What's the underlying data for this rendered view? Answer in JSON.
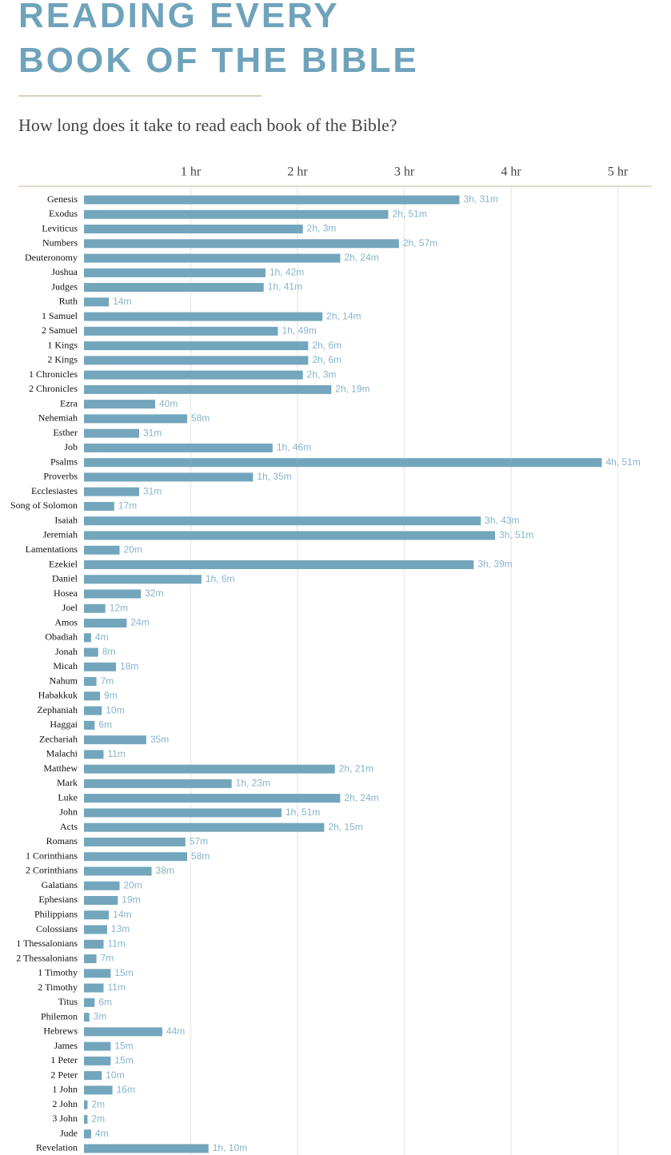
{
  "title_lines": [
    "READING EVERY",
    "BOOK OF THE BIBLE"
  ],
  "chart_data": {
    "type": "hbar",
    "subtitle": "How long does it take to read each book of the Bible?",
    "color": "#73a6bc",
    "xlim": [
      0,
      320
    ],
    "xticks": [
      {
        "value": 60,
        "label": "1 hr"
      },
      {
        "value": 120,
        "label": "2 hr"
      },
      {
        "value": 180,
        "label": "3 hr"
      },
      {
        "value": 240,
        "label": "4 hr"
      },
      {
        "value": 300,
        "label": "5 hr"
      }
    ],
    "grid": true,
    "categories": [
      "Genesis",
      "Exodus",
      "Leviticus",
      "Numbers",
      "Deuteronomy",
      "Joshua",
      "Judges",
      "Ruth",
      "1 Samuel",
      "2 Samuel",
      "1 Kings",
      "2 Kings",
      "1 Chronicles",
      "2 Chronicles",
      "Ezra",
      "Nehemiah",
      "Esther",
      "Job",
      "Psalms",
      "Proverbs",
      "Ecclesiastes",
      "Song of Solomon",
      "Isaiah",
      "Jeremiah",
      "Lamentations",
      "Ezekiel",
      "Daniel",
      "Hosea",
      "Joel",
      "Amos",
      "Obadiah",
      "Jonah",
      "Micah",
      "Nahum",
      "Habakkuk",
      "Zephaniah",
      "Haggai",
      "Zechariah",
      "Malachi",
      "Matthew",
      "Mark",
      "Luke",
      "John",
      "Acts",
      "Romans",
      "1 Corinthians",
      "2 Corinthians",
      "Galatians",
      "Ephesians",
      "Philippians",
      "Colossians",
      "1 Thessalonians",
      "2 Thessalonians",
      "1 Timothy",
      "2 Timothy",
      "Titus",
      "Philemon",
      "Hebrews",
      "James",
      "1 Peter",
      "2 Peter",
      "1 John",
      "2 John",
      "3 John",
      "Jude",
      "Revelation"
    ],
    "values": [
      211,
      171,
      123,
      177,
      144,
      102,
      101,
      14,
      134,
      109,
      126,
      126,
      123,
      139,
      40,
      58,
      31,
      106,
      291,
      95,
      31,
      17,
      223,
      231,
      20,
      219,
      66,
      32,
      12,
      24,
      4,
      8,
      18,
      7,
      9,
      10,
      6,
      35,
      11,
      141,
      83,
      144,
      111,
      135,
      57,
      58,
      38,
      20,
      19,
      14,
      13,
      11,
      7,
      15,
      11,
      6,
      3,
      44,
      15,
      15,
      10,
      16,
      2,
      2,
      4,
      70
    ],
    "value_labels": [
      "3h, 31m",
      "2h, 51m",
      "2h, 3m",
      "2h, 57m",
      "2h, 24m",
      "1h, 42m",
      "1h, 41m",
      "14m",
      "2h, 14m",
      "1h, 49m",
      "2h, 6m",
      "2h, 6m",
      "2h, 3m",
      "2h, 19m",
      "40m",
      "58m",
      "31m",
      "1h, 46m",
      "4h, 51m",
      "1h, 35m",
      "31m",
      "17m",
      "3h, 43m",
      "3h, 51m",
      "20m",
      "3h, 39m",
      "1h, 6m",
      "32m",
      "12m",
      "24m",
      "4m",
      "8m",
      "18m",
      "7m",
      "9m",
      "10m",
      "6m",
      "35m",
      "11m",
      "2h, 21m",
      "1h, 23m",
      "2h, 24m",
      "1h, 51m",
      "2h, 15m",
      "57m",
      "58m",
      "38m",
      "20m",
      "19m",
      "14m",
      "13m",
      "11m",
      "7m",
      "15m",
      "11m",
      "6m",
      "3m",
      "44m",
      "15m",
      "15m",
      "10m",
      "16m",
      "2m",
      "2m",
      "4m",
      "1h, 10m"
    ]
  }
}
